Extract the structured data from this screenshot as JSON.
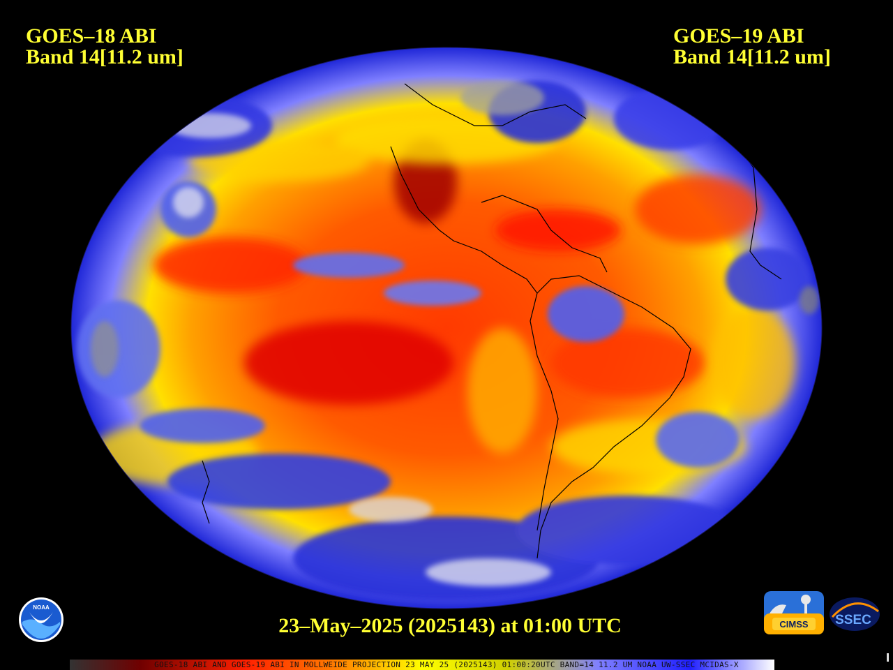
{
  "left_satellite": {
    "line1": "GOES–18 ABI",
    "line2": "Band 14[11.2 um]"
  },
  "right_satellite": {
    "line1": "GOES–19 ABI",
    "line2": "Band 14[11.2 um]"
  },
  "timestamp": "23–May–2025 (2025143) at 01:00 UTC",
  "footer": "GOES-18 ABI AND GOES-19 ABI IN MOLLWEIDE PROJECTION 23 MAY 25 (2025143) 01:00:20UTC BAND=14 11.2 UM NOAA UW-SSEC MCIDAS-X",
  "logos": {
    "noaa": "NOAA",
    "cimss": "CIMSS",
    "ssec": "SSEC"
  },
  "colors": {
    "label_text": "#ffff33",
    "warm_dark": "#b00000",
    "warm_red": "#ff2000",
    "warm_orange": "#ff7a00",
    "mid_yellow": "#ffe600",
    "cool_blue": "#2030e0",
    "cold_white": "#e8e8f0",
    "background": "#000000"
  }
}
